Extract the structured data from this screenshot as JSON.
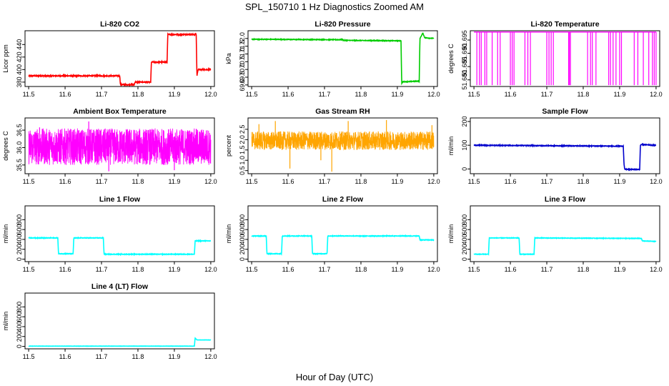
{
  "figure": {
    "title": "SPL_150710  1 Hz Diagnostics Zoomed AM",
    "xlabel": "Hour of Day (UTC)"
  },
  "chart_data": [
    {
      "type": "line",
      "title": "Li-820 CO2",
      "ylabel": "Licor ppm",
      "color": "#ff0000",
      "xlim": [
        11.49,
        12.01
      ],
      "ylim": [
        373,
        462
      ],
      "xticks": [
        11.5,
        11.6,
        11.7,
        11.8,
        11.9,
        12.0
      ],
      "xtick_labels": [
        "11.5",
        "11.6",
        "11.7",
        "11.8",
        "11.9",
        "12.0"
      ],
      "yticks": [
        380,
        400,
        420,
        440
      ],
      "ytick_labels": [
        "380",
        "400",
        "420",
        "440"
      ],
      "noise": 0.8,
      "series": [
        {
          "x": [
            11.5,
            11.75,
            11.752,
            11.79,
            11.792,
            11.835,
            11.837,
            11.88,
            11.882,
            11.96,
            11.962,
            11.965,
            11.967,
            12.0
          ],
          "y": [
            390,
            390,
            376,
            376,
            380,
            380,
            412,
            412,
            456,
            456,
            390,
            400,
            400,
            400
          ]
        }
      ]
    },
    {
      "type": "line",
      "title": "Li-820 Pressure",
      "ylabel": "kPa",
      "color": "#00cc00",
      "xlim": [
        11.49,
        12.01
      ],
      "ylim": [
        68.9,
        72.5
      ],
      "xticks": [
        11.5,
        11.6,
        11.7,
        11.8,
        11.9,
        12.0
      ],
      "xtick_labels": [
        "11.5",
        "11.6",
        "11.7",
        "11.8",
        "11.9",
        "12.0"
      ],
      "yticks": [
        69.0,
        69.5,
        70.0,
        70.5,
        71.0,
        71.5,
        72.0
      ],
      "ytick_labels": [
        "69.0",
        "69.5",
        "70.0",
        "70.5",
        "71.0",
        "71.5",
        "72.0"
      ],
      "noise": 0.02,
      "series": [
        {
          "x": [
            11.5,
            11.75,
            11.752,
            11.91,
            11.912,
            11.915,
            11.96,
            11.962,
            11.97,
            11.975,
            12.0
          ],
          "y": [
            71.95,
            71.92,
            71.88,
            71.85,
            69.1,
            69.2,
            69.25,
            72.0,
            72.35,
            72.05,
            72.0
          ]
        }
      ]
    },
    {
      "type": "line",
      "title": "Li-820 Temperature",
      "ylabel": "degrees C",
      "color": "#ff00ff",
      "xlim": [
        11.49,
        12.01
      ],
      "ylim": [
        51.6775,
        51.6985
      ],
      "xticks": [
        11.5,
        11.6,
        11.7,
        11.8,
        11.9,
        12.0
      ],
      "xtick_labels": [
        "11.5",
        "11.6",
        "11.7",
        "11.8",
        "11.9",
        "12.0"
      ],
      "yticks": [
        51.68,
        51.685,
        51.69,
        51.695
      ],
      "ytick_labels": [
        "51.680",
        "51.685",
        "51.690",
        "51.695"
      ],
      "high": 51.698,
      "low": 51.678,
      "dips": [
        11.508,
        11.515,
        11.52,
        11.53,
        11.535,
        11.55,
        11.565,
        11.572,
        11.6,
        11.605,
        11.61,
        11.64,
        11.648,
        11.655,
        11.7,
        11.706,
        11.712,
        11.718,
        11.76,
        11.762,
        11.765,
        11.812,
        11.82,
        11.825,
        11.835,
        11.87,
        11.875,
        11.882,
        11.89,
        11.9,
        11.905,
        11.94,
        11.95,
        11.965,
        11.98,
        11.99,
        11.995,
        12.0
      ]
    },
    {
      "type": "line",
      "title": "Ambient Box Temperature",
      "ylabel": "degrees C",
      "color": "#ff00ff",
      "xlim": [
        11.49,
        12.01
      ],
      "ylim": [
        35.25,
        36.85
      ],
      "xticks": [
        11.5,
        11.6,
        11.7,
        11.8,
        11.9,
        12.0
      ],
      "xtick_labels": [
        "11.5",
        "11.6",
        "11.7",
        "11.8",
        "11.9",
        "12.0"
      ],
      "yticks": [
        35.5,
        36.0,
        36.5
      ],
      "ytick_labels": [
        "35.5",
        "36.0",
        "36.5"
      ],
      "band": [
        35.5,
        36.55
      ],
      "spikes": [
        [
          11.665,
          36.75
        ],
        [
          11.72,
          35.32
        ],
        [
          11.9,
          35.35
        ],
        [
          11.53,
          36.58
        ]
      ]
    },
    {
      "type": "line",
      "title": "Gas Stream RH",
      "ylabel": "percent",
      "color": "#ffa500",
      "xlim": [
        11.49,
        12.01
      ],
      "ylim": [
        0.35,
        3.05
      ],
      "xticks": [
        11.5,
        11.6,
        11.7,
        11.8,
        11.9,
        12.0
      ],
      "xtick_labels": [
        "11.5",
        "11.6",
        "11.7",
        "11.8",
        "11.9",
        "12.0"
      ],
      "yticks": [
        0.5,
        1.0,
        1.5,
        2.0,
        2.5
      ],
      "ytick_labels": [
        "0.5",
        "1.0",
        "1.5",
        "2.0",
        "2.5"
      ],
      "band": [
        1.5,
        2.4
      ],
      "spikes": [
        [
          11.565,
          2.9
        ],
        [
          11.605,
          0.6
        ],
        [
          11.72,
          0.45
        ],
        [
          11.765,
          2.9
        ],
        [
          11.87,
          2.95
        ],
        [
          11.995,
          2.7
        ],
        [
          11.52,
          2.75
        ],
        [
          11.69,
          1.0
        ]
      ]
    },
    {
      "type": "line",
      "title": "Sample Flow",
      "ylabel": "ml/min",
      "color": "#0000cc",
      "xlim": [
        11.49,
        12.01
      ],
      "ylim": [
        -20,
        215
      ],
      "xticks": [
        11.5,
        11.6,
        11.7,
        11.8,
        11.9,
        12.0
      ],
      "xtick_labels": [
        "11.5",
        "11.6",
        "11.7",
        "11.8",
        "11.9",
        "12.0"
      ],
      "yticks": [
        0,
        100,
        200
      ],
      "ytick_labels": [
        "0",
        "100",
        "200"
      ],
      "noise": 1.5,
      "series": [
        {
          "x": [
            11.5,
            11.91,
            11.912,
            11.914,
            11.955,
            11.957,
            11.96,
            12.0
          ],
          "y": [
            100,
            96,
            20,
            -2,
            -2,
            100,
            103,
            100
          ]
        }
      ]
    },
    {
      "type": "line",
      "title": "Line 1 Flow",
      "ylabel": "ml/min",
      "color": "#00ffff",
      "xlim": [
        11.49,
        12.01
      ],
      "ylim": [
        -50,
        1080
      ],
      "xticks": [
        11.5,
        11.6,
        11.7,
        11.8,
        11.9,
        12.0
      ],
      "xtick_labels": [
        "11.5",
        "11.6",
        "11.7",
        "11.8",
        "11.9",
        "12.0"
      ],
      "yticks": [
        0,
        200,
        400,
        600,
        800
      ],
      "ytick_labels": [
        "0",
        "200",
        "400",
        "600",
        "800"
      ],
      "noise": 6,
      "series": [
        {
          "x": [
            11.5,
            11.58,
            11.582,
            11.622,
            11.624,
            11.705,
            11.707,
            11.955,
            11.957,
            12.0
          ],
          "y": [
            430,
            430,
            110,
            110,
            430,
            430,
            100,
            100,
            370,
            370
          ]
        }
      ]
    },
    {
      "type": "line",
      "title": "Line 2 Flow",
      "ylabel": "ml/min",
      "color": "#00ffff",
      "xlim": [
        11.49,
        12.01
      ],
      "ylim": [
        -50,
        1080
      ],
      "xticks": [
        11.5,
        11.6,
        11.7,
        11.8,
        11.9,
        12.0
      ],
      "xtick_labels": [
        "11.5",
        "11.6",
        "11.7",
        "11.8",
        "11.9",
        "12.0"
      ],
      "yticks": [
        0,
        200,
        400,
        600,
        800
      ],
      "ytick_labels": [
        "0",
        "200",
        "400",
        "600",
        "800"
      ],
      "noise": 6,
      "series": [
        {
          "x": [
            11.5,
            11.54,
            11.542,
            11.582,
            11.584,
            11.665,
            11.667,
            11.707,
            11.709,
            11.96,
            11.962,
            12.0
          ],
          "y": [
            470,
            470,
            110,
            110,
            470,
            470,
            110,
            110,
            470,
            470,
            390,
            390
          ]
        }
      ]
    },
    {
      "type": "line",
      "title": "Line 3 Flow",
      "ylabel": "ml/min",
      "color": "#00ffff",
      "xlim": [
        11.49,
        12.01
      ],
      "ylim": [
        -50,
        1080
      ],
      "xticks": [
        11.5,
        11.6,
        11.7,
        11.8,
        11.9,
        12.0
      ],
      "xtick_labels": [
        "11.5",
        "11.6",
        "11.7",
        "11.8",
        "11.9",
        "12.0"
      ],
      "yticks": [
        0,
        200,
        400,
        600,
        800
      ],
      "ytick_labels": [
        "0",
        "200",
        "400",
        "600",
        "800"
      ],
      "noise": 5,
      "series": [
        {
          "x": [
            11.5,
            11.54,
            11.542,
            11.624,
            11.626,
            11.665,
            11.667,
            11.96,
            11.962,
            12.0
          ],
          "y": [
            100,
            100,
            430,
            430,
            100,
            100,
            430,
            420,
            370,
            360
          ]
        }
      ]
    },
    {
      "type": "line",
      "title": "Line 4 (LT) Flow",
      "ylabel": "ml/min",
      "color": "#00ffff",
      "xlim": [
        11.49,
        12.01
      ],
      "ylim": [
        -50,
        1080
      ],
      "xticks": [
        11.5,
        11.6,
        11.7,
        11.8,
        11.9,
        12.0
      ],
      "xtick_labels": [
        "11.5",
        "11.6",
        "11.7",
        "11.8",
        "11.9",
        "12.0"
      ],
      "yticks": [
        0,
        200,
        400,
        600,
        800
      ],
      "ytick_labels": [
        "0",
        "200",
        "400",
        "600",
        "800"
      ],
      "noise": 2,
      "series": [
        {
          "x": [
            11.5,
            11.955,
            11.957,
            11.962,
            12.0
          ],
          "y": [
            5,
            5,
            170,
            130,
            130
          ]
        }
      ]
    }
  ]
}
